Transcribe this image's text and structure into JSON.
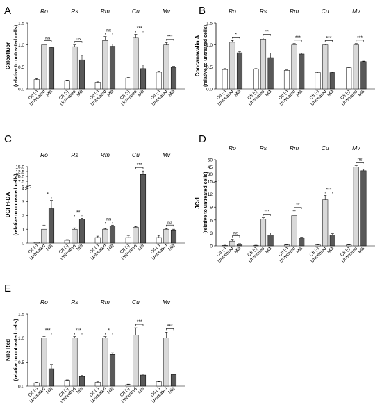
{
  "figure": {
    "groups": [
      "Ro",
      "Rs",
      "Rm",
      "Cu",
      "Mv"
    ],
    "conditions": [
      "Ctl (-)",
      "Untreated",
      "Milt"
    ],
    "bar_colors": [
      "#ffffff",
      "#d9d9d9",
      "#595959"
    ]
  },
  "chart_data": [
    {
      "panel": "A",
      "type": "bar",
      "ylabel": "Calcofluor",
      "ylabel2": "(relative to untreated cells)",
      "ylim": [
        0,
        1.5
      ],
      "yticks": [
        "0.0",
        "0.5",
        "1.0",
        "1.5"
      ],
      "categories": [
        "Ro",
        "Rs",
        "Rm",
        "Cu",
        "Mv"
      ],
      "series": [
        {
          "name": "Ctl (-)",
          "values": [
            0.21,
            0.19,
            0.15,
            0.25,
            0.38
          ],
          "err": [
            0.02,
            0.01,
            0.01,
            0.01,
            0.02
          ]
        },
        {
          "name": "Untreated",
          "values": [
            1.0,
            0.96,
            1.1,
            1.17,
            1.0
          ],
          "err": [
            0.02,
            0.04,
            0.09,
            0.07,
            0.05
          ]
        },
        {
          "name": "Milt",
          "values": [
            0.94,
            0.66,
            0.97,
            0.46,
            0.49
          ],
          "err": [
            0.01,
            0.1,
            0.05,
            0.08,
            0.02
          ]
        }
      ],
      "significance": [
        "ns",
        "ns",
        "ns",
        "***",
        "***"
      ]
    },
    {
      "panel": "B",
      "type": "bar",
      "ylabel": "Concanavalin A",
      "ylabel2": "(relative to untreated cells)",
      "ylim": [
        0,
        1.5
      ],
      "yticks": [
        "0.0",
        "0.5",
        "1.0",
        "1.5"
      ],
      "categories": [
        "Ro",
        "Rs",
        "Rm",
        "Cu",
        "Mv"
      ],
      "series": [
        {
          "name": "Ctl (-)",
          "values": [
            0.44,
            0.45,
            0.42,
            0.37,
            0.48
          ],
          "err": [
            0.02,
            0.01,
            0.01,
            0.02,
            0.01
          ]
        },
        {
          "name": "Untreated",
          "values": [
            1.06,
            1.13,
            1.0,
            1.0,
            1.0
          ],
          "err": [
            0.04,
            0.03,
            0.03,
            0.02,
            0.03
          ]
        },
        {
          "name": "Milt",
          "values": [
            0.82,
            0.71,
            0.79,
            0.37,
            0.62
          ],
          "err": [
            0.03,
            0.1,
            0.02,
            0.01,
            0.01
          ]
        }
      ],
      "significance": [
        "*",
        "**",
        "***",
        "***",
        "***"
      ]
    },
    {
      "panel": "C",
      "type": "bar",
      "ylabel": "DCFH-DA",
      "ylabel2": "(relative to untreated cells)",
      "ylim": [
        0,
        15
      ],
      "yticks": [
        "0",
        "1",
        "2",
        "3",
        "4",
        "5",
        "7.5",
        "10.0",
        "12.5",
        "15.0"
      ],
      "categories": [
        "Ro",
        "Rs",
        "Rm",
        "Cu",
        "Mv"
      ],
      "series": [
        {
          "name": "Ctl (-)",
          "values": [
            0.05,
            0.2,
            0.4,
            0.4,
            0.4
          ],
          "err": [
            0.02,
            0.05,
            0.1,
            0.15,
            0.15
          ]
        },
        {
          "name": "Untreated",
          "values": [
            1.0,
            1.0,
            1.0,
            1.15,
            1.0
          ],
          "err": [
            0.3,
            0.1,
            0.05,
            0.05,
            0.05
          ]
        },
        {
          "name": "Milt",
          "values": [
            2.5,
            1.75,
            1.25,
            11.0,
            0.95
          ],
          "err": [
            0.6,
            0.05,
            0.05,
            1.8,
            0.05
          ]
        }
      ],
      "significance": [
        "*",
        "**",
        "ns",
        "***",
        "ns"
      ]
    },
    {
      "panel": "D",
      "type": "bar",
      "ylabel": "JC-1",
      "ylabel2": "(relative to untreated cells)",
      "ylim": [
        0,
        60
      ],
      "yticks": [
        "0",
        "3",
        "6",
        "9",
        "12",
        "15",
        "30",
        "45",
        "60"
      ],
      "categories": [
        "Ro",
        "Rs",
        "Rm",
        "Cu",
        "Mv"
      ],
      "series": [
        {
          "name": "Ctl (-)",
          "values": [
            0.1,
            0.1,
            0.2,
            0.2,
            0.2
          ],
          "err": [
            0.05,
            0.05,
            0.05,
            0.05,
            0.05
          ]
        },
        {
          "name": "Untreated",
          "values": [
            1.1,
            6.2,
            7.0,
            10.7,
            45.0
          ],
          "err": [
            0.4,
            0.3,
            1.1,
            1.0,
            3.0
          ]
        },
        {
          "name": "Milt",
          "values": [
            0.4,
            2.5,
            1.8,
            2.5,
            37.0
          ],
          "err": [
            0.1,
            0.5,
            0.2,
            0.3,
            3.0
          ]
        }
      ],
      "significance": [
        "ns",
        "***",
        "**",
        "***",
        "ns"
      ]
    },
    {
      "panel": "E",
      "type": "bar",
      "ylabel": "Nile Red",
      "ylabel2": "(relative to untreated cells)",
      "ylim": [
        0,
        1.5
      ],
      "yticks": [
        "0.0",
        "0.5",
        "1.0",
        "1.5"
      ],
      "categories": [
        "Ro",
        "Rs",
        "Rm",
        "Cu",
        "Mv"
      ],
      "series": [
        {
          "name": "Ctl (-)",
          "values": [
            0.07,
            0.12,
            0.08,
            0.03,
            0.09
          ],
          "err": [
            0.01,
            0.01,
            0.01,
            0.01,
            0.01
          ]
        },
        {
          "name": "Untreated",
          "values": [
            1.0,
            1.0,
            1.0,
            1.06,
            1.0
          ],
          "err": [
            0.03,
            0.03,
            0.03,
            0.15,
            0.12
          ]
        },
        {
          "name": "Milt",
          "values": [
            0.36,
            0.2,
            0.66,
            0.23,
            0.24
          ],
          "err": [
            0.09,
            0.02,
            0.03,
            0.02,
            0.01
          ]
        }
      ],
      "significance": [
        "***",
        "***",
        "*",
        "***",
        "***"
      ]
    }
  ]
}
